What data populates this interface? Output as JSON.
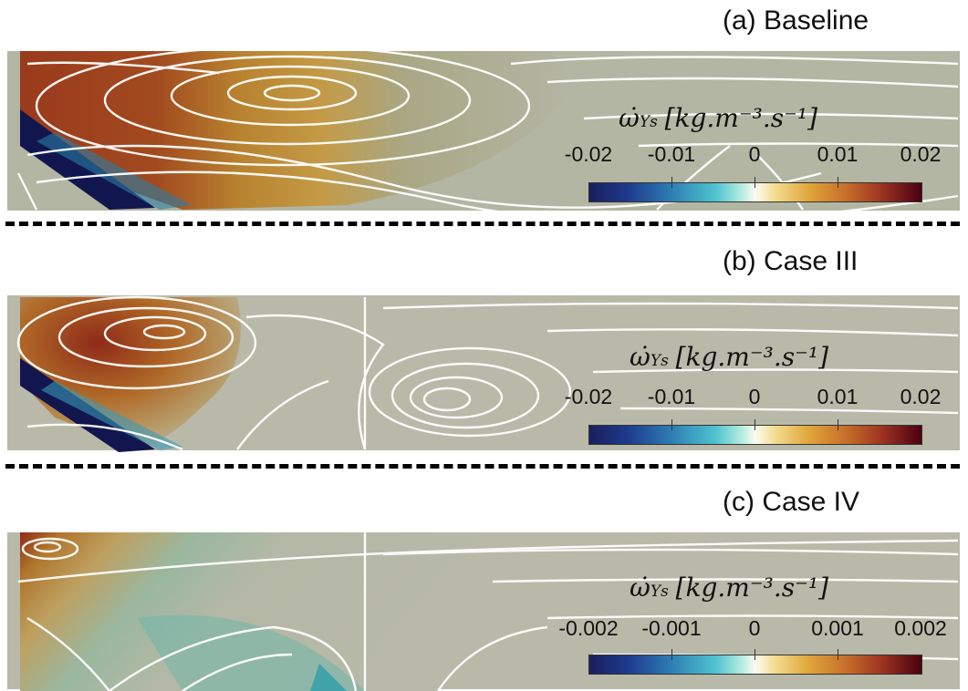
{
  "panels": [
    {
      "title": "(a) Baseline",
      "colorbar": {
        "quantity_symbol": "ω̇",
        "quantity_subscript": "Ys",
        "units": "[kg.m⁻³.s⁻¹]",
        "ticks": [
          "-0.02",
          "-0.01",
          "0",
          "0.01",
          "0.02"
        ]
      }
    },
    {
      "title": "(b) Case III",
      "colorbar": {
        "quantity_symbol": "ω̇",
        "quantity_subscript": "Ys",
        "units": "[kg.m⁻³.s⁻¹]",
        "ticks": [
          "-0.02",
          "-0.01",
          "0",
          "0.01",
          "0.02"
        ]
      }
    },
    {
      "title": "(c) Case IV",
      "colorbar": {
        "quantity_symbol": "ω̇",
        "quantity_subscript": "Ys",
        "units": "[kg.m⁻³.s⁻¹]",
        "ticks": [
          "-0.002",
          "-0.001",
          "0",
          "0.001",
          "0.002"
        ]
      }
    }
  ],
  "colors": {
    "background_field": "#b8b9a9",
    "streamline": "#ffffff",
    "divider": "#000000"
  }
}
